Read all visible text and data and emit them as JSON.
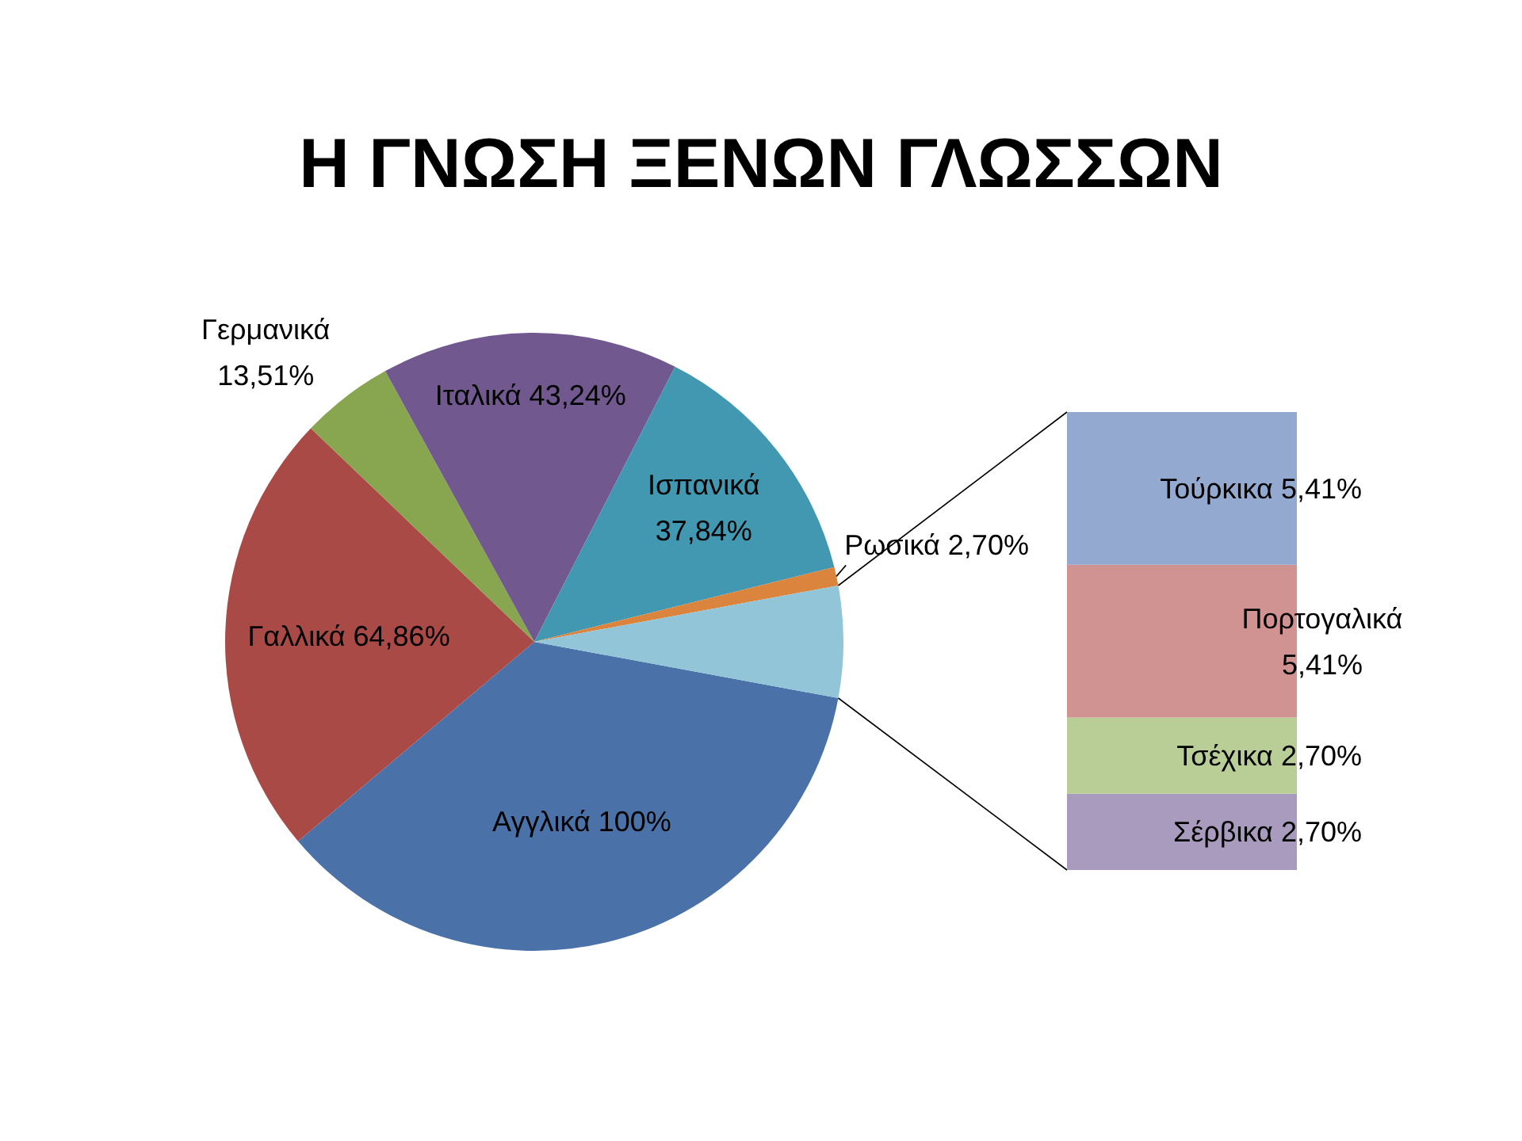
{
  "chart_data": [
    {
      "type": "pie",
      "title": "Η ΓΝΩΣΗ ΞΕΝΩΝ ΓΛΩΣΣΩΝ",
      "categories": [
        "Αγγλικά",
        "Γαλλικά",
        "Γερμανικά",
        "Ιταλικά",
        "Ισπανικά",
        "Ρωσικά",
        null
      ],
      "values": [
        100,
        64.86,
        13.51,
        43.24,
        37.84,
        2.7,
        16.22
      ],
      "value_labels": [
        "100%",
        "64,86%",
        "13,51%",
        "43,24%",
        "37,84%",
        "2,70%",
        null
      ],
      "colors": [
        "#4a72a9",
        "#aa4a47",
        "#88a54f",
        "#71588f",
        "#4198b0",
        "#db843d",
        "#93c5d8"
      ]
    },
    {
      "type": "bar",
      "stacked": true,
      "categories": [
        null
      ],
      "series": [
        {
          "name": "Σέρβικα",
          "color": "#a99bbd",
          "values": [
            2.7
          ],
          "value_labels": [
            "2,70%"
          ]
        },
        {
          "name": "Τσέχικα",
          "color": "#b9cd96",
          "values": [
            2.7
          ],
          "value_labels": [
            "2,70%"
          ]
        },
        {
          "name": "Πορτογαλικά",
          "color": "#d19392",
          "values": [
            5.41
          ],
          "value_labels": [
            "5,41%"
          ]
        },
        {
          "name": "Τούρκικα",
          "color": "#94a9cf",
          "values": [
            5.41
          ],
          "value_labels": [
            "5,41%"
          ]
        }
      ]
    }
  ]
}
